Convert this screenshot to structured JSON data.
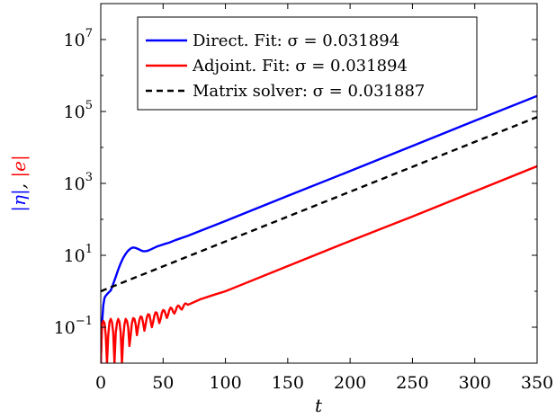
{
  "chart_data": {
    "type": "line",
    "xlabel": "t",
    "ylabel_parts": [
      {
        "text": "|η|",
        "color": "#0000ff"
      },
      {
        "text": ", ",
        "color": "#000000"
      },
      {
        "text": "|e|",
        "color": "#ff0000"
      }
    ],
    "xlim": [
      0,
      350
    ],
    "ylim": [
      0.01,
      100000000
    ],
    "yscale": "log",
    "x_ticks": [
      0,
      50,
      100,
      150,
      200,
      250,
      300,
      350
    ],
    "x_tick_labels": [
      "0",
      "50",
      "100",
      "150",
      "200",
      "250",
      "300",
      "350"
    ],
    "y_ticks": [
      0.1,
      10,
      1000,
      100000,
      10000000
    ],
    "y_tick_labels": [
      {
        "base": "10",
        "exp": "−1"
      },
      {
        "base": "10",
        "exp": "1"
      },
      {
        "base": "10",
        "exp": "3"
      },
      {
        "base": "10",
        "exp": "5"
      },
      {
        "base": "10",
        "exp": "7"
      }
    ],
    "grid": false,
    "legend_position": "top-right",
    "series": [
      {
        "name": "Direct. Fit: σ = 0.031894",
        "color": "#0000ff",
        "dash": "solid",
        "x": [
          0,
          1,
          2,
          3,
          4,
          6,
          8,
          10,
          12,
          14,
          16,
          18,
          20,
          22,
          24,
          26,
          28,
          30,
          32,
          34,
          36,
          38,
          40,
          45,
          50,
          55,
          60,
          70,
          80,
          100,
          150,
          200,
          250,
          300,
          350
        ],
        "y": [
          0.01,
          0.12,
          0.4,
          0.65,
          0.75,
          0.9,
          1.05,
          1.6,
          2.5,
          4.0,
          6.0,
          8.5,
          11,
          13.5,
          15.5,
          16.5,
          16,
          15,
          13.8,
          13,
          13,
          13.5,
          14.5,
          17.5,
          20,
          22.5,
          26.5,
          35,
          48,
          90,
          450,
          2200,
          11000,
          55000,
          270000
        ]
      },
      {
        "name": "Adjoint. Fit: σ = 0.031894",
        "color": "#ff0000",
        "dash": "solid",
        "x": [
          0,
          1,
          2,
          3,
          4,
          5,
          6,
          7,
          8,
          9,
          10,
          11,
          12,
          13,
          14,
          15,
          16,
          17,
          18,
          19,
          20,
          21,
          22,
          23,
          24,
          25,
          26,
          27,
          28,
          29,
          30,
          31,
          32,
          33,
          34,
          35,
          36,
          37,
          38,
          39,
          40,
          41,
          42,
          43,
          44,
          45,
          46,
          47,
          48,
          49,
          50,
          51,
          52,
          53,
          54,
          55,
          56,
          57,
          58,
          59,
          60,
          61,
          62,
          63,
          64,
          65,
          66,
          67,
          68,
          69,
          70,
          80,
          90,
          100,
          150,
          200,
          250,
          300,
          350
        ],
        "y": [
          0.01,
          0.12,
          0.15,
          0.13,
          0.06,
          0.01,
          0.06,
          0.14,
          0.17,
          0.14,
          0.07,
          0.01,
          0.07,
          0.13,
          0.17,
          0.14,
          0.07,
          0.01,
          0.05,
          0.12,
          0.17,
          0.15,
          0.1,
          0.03,
          0.06,
          0.13,
          0.18,
          0.17,
          0.12,
          0.06,
          0.1,
          0.16,
          0.2,
          0.19,
          0.13,
          0.08,
          0.12,
          0.19,
          0.23,
          0.22,
          0.15,
          0.1,
          0.14,
          0.21,
          0.26,
          0.25,
          0.18,
          0.13,
          0.17,
          0.25,
          0.3,
          0.29,
          0.23,
          0.18,
          0.22,
          0.3,
          0.35,
          0.33,
          0.27,
          0.24,
          0.28,
          0.36,
          0.4,
          0.38,
          0.33,
          0.31,
          0.36,
          0.43,
          0.46,
          0.44,
          0.42,
          0.6,
          0.78,
          1.0,
          5.0,
          25,
          120,
          600,
          3000
        ]
      },
      {
        "name": "Matrix solver: σ = 0.031887",
        "color": "#000000",
        "dash": "dashed",
        "x": [
          0,
          350
        ],
        "y": [
          1.0,
          70000
        ]
      }
    ]
  }
}
